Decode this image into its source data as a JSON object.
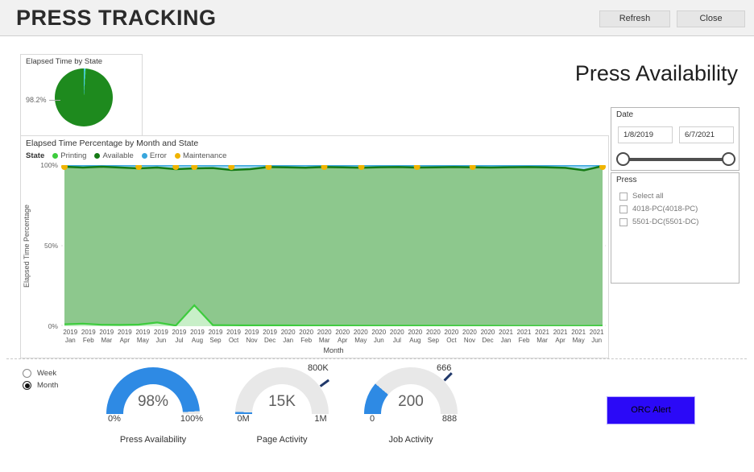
{
  "header": {
    "title": "PRESS TRACKING",
    "refresh": "Refresh",
    "close": "Close"
  },
  "pie": {
    "title": "Elapsed Time by State",
    "label": "98.2%",
    "slices": [
      {
        "name": "Error",
        "pct": 1.4,
        "color": "#45c7ea"
      },
      {
        "name": "Printing",
        "pct": 0.4,
        "color": "#3dcc3d"
      },
      {
        "name": "Available",
        "pct": 98.2,
        "color": "#1e8a1e"
      }
    ]
  },
  "right": {
    "title": "Press Availability"
  },
  "date_slicer": {
    "title": "Date",
    "start": "1/8/2019",
    "end": "6/7/2021"
  },
  "press_slicer": {
    "title": "Press",
    "options": [
      "Select all",
      "4018-PC(4018-PC)",
      "5501-DC(5501-DC)"
    ]
  },
  "period": {
    "options": [
      {
        "label": "Week",
        "selected": false
      },
      {
        "label": "Month",
        "selected": true
      }
    ]
  },
  "gauges": [
    {
      "caption": "Press Availability",
      "value": "98%",
      "min": "0%",
      "max": "100%",
      "fraction": 0.98,
      "color": "#2e8ae4"
    },
    {
      "caption": "Page Activity",
      "value": "15K",
      "min": "0M",
      "max": "1M",
      "fraction": 0.015,
      "color": "#2e8ae4",
      "target": {
        "label": "800K",
        "fraction": 0.8
      }
    },
    {
      "caption": "Job Activity",
      "value": "200",
      "min": "0",
      "max": "888",
      "fraction": 0.225,
      "color": "#2e8ae4",
      "target": {
        "label": "666",
        "fraction": 0.75
      }
    }
  ],
  "alert": {
    "label": "ORC Alert",
    "color": "#2b09f7"
  },
  "chart_data": {
    "type": "area",
    "title": "Elapsed Time Percentage by Month and State",
    "legend_title": "State",
    "xlabel": "Month",
    "ylabel": "Elapsed Time Percentage",
    "ylim": [
      0,
      100
    ],
    "yticks": [
      "100%",
      "50%",
      "0%"
    ],
    "categories": [
      "2019 Jan",
      "2019 Feb",
      "2019 Mar",
      "2019 Apr",
      "2019 May",
      "2019 Jun",
      "2019 Jul",
      "2019 Aug",
      "2019 Sep",
      "2019 Oct",
      "2019 Nov",
      "2019 Dec",
      "2020 Jan",
      "2020 Feb",
      "2020 Mar",
      "2020 Apr",
      "2020 May",
      "2020 Jun",
      "2020 Jul",
      "2020 Aug",
      "2020 Sep",
      "2020 Oct",
      "2020 Nov",
      "2020 Dec",
      "2021 Jan",
      "2021 Feb",
      "2021 Mar",
      "2021 Apr",
      "2021 May",
      "2021 Jun"
    ],
    "series": [
      {
        "name": "Printing",
        "color": "#3dcc3d",
        "fill": "#c8efc8",
        "values": [
          1.2,
          1.6,
          0.9,
          0.8,
          1.0,
          2.3,
          0.4,
          13,
          0.7,
          0.6,
          0.5,
          0.5,
          0.5,
          0.4,
          0.4,
          0.4,
          0.35,
          0.3,
          0.3,
          0.3,
          0.3,
          0.25,
          0.25,
          0.25,
          0.2,
          0.2,
          0.2,
          0.2,
          0.2,
          0.3
        ]
      },
      {
        "name": "Available",
        "color": "#157a15",
        "fill": "#8dc88d",
        "values": [
          99,
          98.5,
          99,
          98.5,
          98,
          98.5,
          97.5,
          98,
          98.2,
          97,
          97.5,
          98.8,
          98.6,
          98.4,
          98.8,
          98.6,
          98.4,
          98.7,
          98.8,
          98.5,
          98.6,
          98.8,
          98.6,
          98.5,
          98.7,
          98.8,
          98.6,
          98.3,
          96.8,
          99.4
        ]
      },
      {
        "name": "Error",
        "color": "#38a6dc",
        "fill": "#a6dcf2",
        "values": [
          100,
          100,
          100,
          100,
          100,
          100,
          100,
          100,
          100,
          100,
          100,
          100,
          100,
          100,
          100,
          100,
          100,
          100,
          100,
          100,
          100,
          100,
          100,
          100,
          100,
          100,
          100,
          100,
          100,
          100
        ]
      },
      {
        "name": "Maintenance",
        "color": "#f0b400",
        "marker_value": 100,
        "marker_indices": [
          0,
          4,
          6,
          7,
          9,
          11,
          14,
          16,
          19,
          22,
          29
        ]
      }
    ]
  }
}
